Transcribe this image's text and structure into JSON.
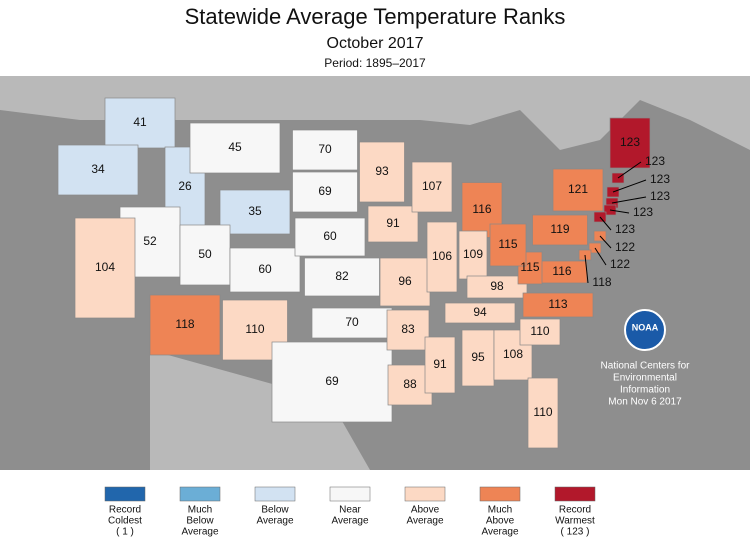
{
  "title": "Statewide Average Temperature Ranks",
  "subtitle": "October 2017",
  "period": "Period: 1895–2017",
  "states": [
    {
      "rank": 41,
      "color": "#d2e2f2"
    },
    {
      "rank": 34,
      "color": "#d2e2f2"
    },
    {
      "rank": 26,
      "color": "#d2e2f2"
    },
    {
      "rank": 45,
      "color": "#f7f7f7"
    },
    {
      "rank": 35,
      "color": "#d2e2f2"
    },
    {
      "rank": 52,
      "color": "#f7f7f7"
    },
    {
      "rank": 50,
      "color": "#f7f7f7"
    },
    {
      "rank": 60,
      "color": "#f7f7f7"
    },
    {
      "rank": 104,
      "color": "#fcd9c4"
    },
    {
      "rank": 118,
      "color": "#ee8455"
    },
    {
      "rank": 110,
      "color": "#fcd9c4"
    },
    {
      "rank": 70,
      "color": "#f7f7f7"
    },
    {
      "rank": 69,
      "color": "#f7f7f7"
    },
    {
      "rank": 60,
      "color": "#f7f7f7"
    },
    {
      "rank": 82,
      "color": "#f7f7f7"
    },
    {
      "rank": 70,
      "color": "#f7f7f7"
    },
    {
      "rank": 69,
      "color": "#f7f7f7"
    },
    {
      "rank": 93,
      "color": "#fcd9c4"
    },
    {
      "rank": 91,
      "color": "#fcd9c4"
    },
    {
      "rank": 96,
      "color": "#fcd9c4"
    },
    {
      "rank": 83,
      "color": "#fcd9c4"
    },
    {
      "rank": 88,
      "color": "#fcd9c4"
    },
    {
      "rank": 107,
      "color": "#fcd9c4"
    },
    {
      "rank": 106,
      "color": "#fcd9c4"
    },
    {
      "rank": 91,
      "color": "#fcd9c4"
    },
    {
      "rank": 116,
      "color": "#ee8455"
    },
    {
      "rank": 109,
      "color": "#fcd9c4"
    },
    {
      "rank": 98,
      "color": "#fcd9c4"
    },
    {
      "rank": 94,
      "color": "#fcd9c4"
    },
    {
      "rank": 95,
      "color": "#fcd9c4"
    },
    {
      "rank": 108,
      "color": "#fcd9c4"
    },
    {
      "rank": 110,
      "color": "#fcd9c4"
    },
    {
      "rank": 110,
      "color": "#fcd9c4"
    },
    {
      "rank": 113,
      "color": "#ee8455"
    },
    {
      "rank": 116,
      "color": "#ee8455"
    },
    {
      "rank": 115,
      "color": "#ee8455"
    },
    {
      "rank": 115,
      "color": "#ee8455"
    },
    {
      "rank": 119,
      "color": "#ee8455"
    },
    {
      "rank": 121,
      "color": "#ee8455"
    },
    {
      "rank": 123,
      "color": "#b2182b"
    },
    {
      "rank": 123,
      "color": "#b2182b"
    },
    {
      "rank": 123,
      "color": "#b2182b"
    },
    {
      "rank": 123,
      "color": "#b2182b"
    },
    {
      "rank": 123,
      "color": "#b2182b"
    },
    {
      "rank": 123,
      "color": "#b2182b"
    },
    {
      "rank": 122,
      "color": "#ee8455"
    },
    {
      "rank": 122,
      "color": "#ee8455"
    },
    {
      "rank": 118,
      "color": "#ee8455"
    }
  ],
  "legend": [
    {
      "color": "#2166ac",
      "lines": [
        "Record",
        "Coldest",
        "( 1 )"
      ]
    },
    {
      "color": "#6baed6",
      "lines": [
        "Much",
        "Below",
        "Average"
      ]
    },
    {
      "color": "#d2e2f2",
      "lines": [
        "Below",
        "Average"
      ]
    },
    {
      "color": "#f7f7f7",
      "lines": [
        "Near",
        "Average"
      ]
    },
    {
      "color": "#fcd9c4",
      "lines": [
        "Above",
        "Average"
      ]
    },
    {
      "color": "#ee8455",
      "lines": [
        "Much",
        "Above",
        "Average"
      ]
    },
    {
      "color": "#b2182b",
      "lines": [
        "Record",
        "Warmest",
        "( 123 )"
      ]
    }
  ],
  "logo": "NOAA",
  "credit": [
    "National Centers for",
    "Environmental",
    "Information",
    "Mon Nov  6 2017"
  ]
}
